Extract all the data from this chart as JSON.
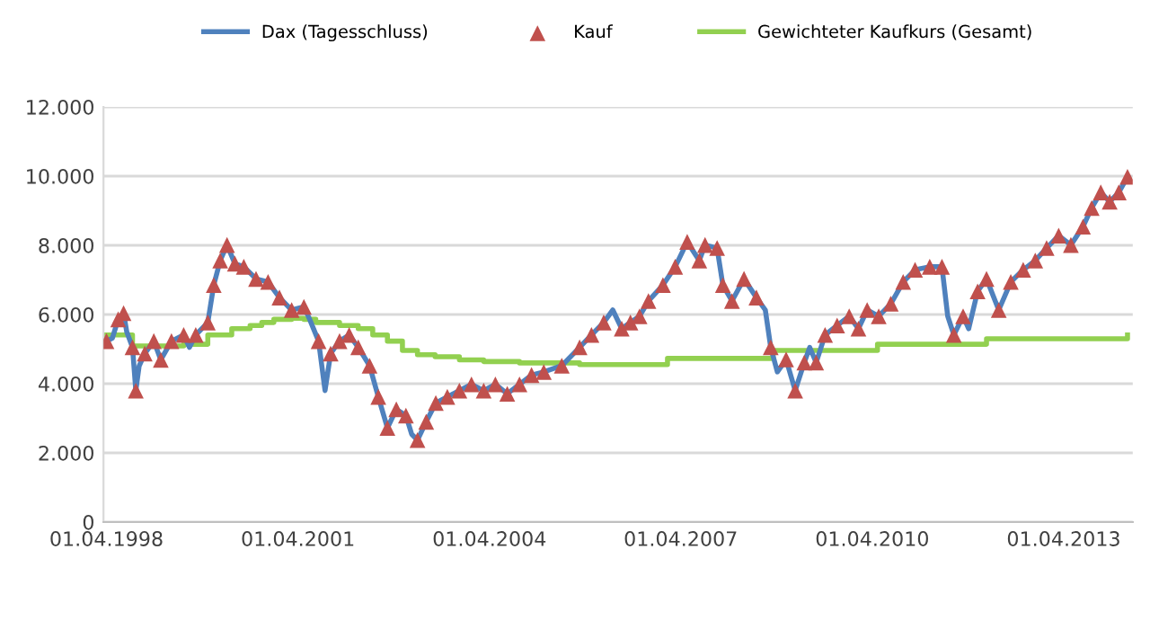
{
  "chart_data": {
    "type": "line",
    "xlim": [
      "1998-03-15",
      "2014-05-01"
    ],
    "xticks": [
      {
        "value": "1998-04-01",
        "label": "01.04.1998"
      },
      {
        "value": "2001-04-01",
        "label": "01.04.2001"
      },
      {
        "value": "2004-04-01",
        "label": "01.04.2004"
      },
      {
        "value": "2007-04-01",
        "label": "01.04.2007"
      },
      {
        "value": "2010-04-01",
        "label": "01.04.2010"
      },
      {
        "value": "2013-04-01",
        "label": "01.04.2013"
      }
    ],
    "ylim": [
      0,
      12000
    ],
    "yticks": [
      0,
      {
        "value": 2000,
        "label": "2.000"
      },
      {
        "value": 4000,
        "label": "4.000"
      },
      {
        "value": 6000,
        "label": "6.000"
      },
      {
        "value": 8000,
        "label": "8.000"
      },
      {
        "value": 10000,
        "label": "10.000"
      },
      {
        "value": 12000,
        "label": "12.000"
      }
    ],
    "grid": "y",
    "legend": "top",
    "series": [
      {
        "name": "Dax (Tagesschluss)",
        "color": "#4f81bd",
        "marker": "none",
        "x": [
          "1998-04-01",
          "1998-05-05",
          "1998-06-07",
          "1998-07-08",
          "1998-07-26",
          "1998-08-28",
          "1998-09-16",
          "1998-10-05",
          "1998-11-06",
          "1998-12-28",
          "1999-02-06",
          "1999-04-08",
          "1999-06-17",
          "1999-07-20",
          "1999-08-25",
          "1999-11-02",
          "1999-12-06",
          "2000-01-12",
          "2000-02-20",
          "2000-04-05",
          "2000-05-26",
          "2000-08-04",
          "2000-10-12",
          "2000-12-16",
          "2001-02-24",
          "2001-05-05",
          "2001-06-07",
          "2001-07-28",
          "2001-09-03",
          "2001-10-05",
          "2001-11-25",
          "2002-01-19",
          "2002-03-12",
          "2002-05-16",
          "2002-07-05",
          "2002-08-26",
          "2002-10-16",
          "2002-12-10",
          "2003-01-12",
          "2003-02-14",
          "2003-04-05",
          "2003-05-30",
          "2003-08-04",
          "2003-10-12",
          "2003-12-20",
          "2004-02-28",
          "2004-05-05",
          "2004-07-12",
          "2004-09-20",
          "2004-11-28",
          "2005-02-06",
          "2005-05-20",
          "2005-08-30",
          "2005-11-06",
          "2006-01-15",
          "2006-03-08",
          "2006-04-28",
          "2006-06-17",
          "2006-08-08",
          "2006-09-28",
          "2006-12-20",
          "2007-02-28",
          "2007-05-08",
          "2007-07-16",
          "2007-08-18",
          "2007-10-26",
          "2007-11-28",
          "2008-01-19",
          "2008-03-28",
          "2008-06-07",
          "2008-07-28",
          "2008-08-28",
          "2008-10-05",
          "2008-11-24",
          "2009-01-15",
          "2009-03-08",
          "2009-04-08",
          "2009-05-15",
          "2009-07-05",
          "2009-09-12",
          "2009-11-20",
          "2010-01-12",
          "2010-03-03",
          "2010-05-08",
          "2010-07-16",
          "2010-09-25",
          "2010-12-02",
          "2011-02-24",
          "2011-05-05",
          "2011-06-07",
          "2011-07-12",
          "2011-09-03",
          "2011-10-05",
          "2011-11-25",
          "2012-01-15",
          "2012-03-25",
          "2012-06-02",
          "2012-08-12",
          "2012-10-20",
          "2012-12-24",
          "2013-03-03",
          "2013-05-12",
          "2013-07-20",
          "2013-09-08",
          "2013-10-30",
          "2013-12-20",
          "2014-02-10",
          "2014-04-01"
        ],
        "values": [
          5230,
          5320,
          5860,
          6040,
          5500,
          5050,
          3800,
          4510,
          4870,
          5230,
          4690,
          5230,
          5410,
          5050,
          5410,
          5770,
          6850,
          7560,
          8010,
          7470,
          7380,
          7030,
          6940,
          6490,
          6130,
          6220,
          5860,
          5230,
          3800,
          4870,
          5230,
          5410,
          5050,
          4520,
          3620,
          2720,
          3260,
          3080,
          2540,
          2370,
          2900,
          3440,
          3620,
          3800,
          3980,
          3800,
          3980,
          3710,
          3980,
          4250,
          4340,
          4520,
          5050,
          5410,
          5770,
          6130,
          5590,
          5770,
          5950,
          6390,
          6850,
          7380,
          8100,
          7560,
          8010,
          7920,
          6850,
          6390,
          7030,
          6490,
          6130,
          5050,
          4340,
          4700,
          3800,
          4610,
          5050,
          4610,
          5410,
          5680,
          5950,
          5590,
          6130,
          5950,
          6310,
          6940,
          7290,
          7380,
          7380,
          5950,
          5410,
          5950,
          5590,
          6670,
          7030,
          6130,
          6940,
          7290,
          7560,
          7920,
          8280,
          8010,
          8540,
          9080,
          9530,
          9260,
          9530,
          9980
        ]
      },
      {
        "name": "Kauf",
        "type": "scatter",
        "color": "#c0504d",
        "marker": "triangle",
        "x": [
          "1998-04-01",
          "1998-06-07",
          "1998-07-08",
          "1998-08-28",
          "1998-09-16",
          "1998-11-06",
          "1998-12-28",
          "1999-02-06",
          "1999-04-08",
          "1999-06-17",
          "1999-08-25",
          "1999-11-02",
          "1999-12-06",
          "2000-01-12",
          "2000-02-20",
          "2000-04-05",
          "2000-05-26",
          "2000-08-04",
          "2000-10-12",
          "2000-12-16",
          "2001-02-24",
          "2001-05-05",
          "2001-07-28",
          "2001-10-05",
          "2001-11-25",
          "2002-01-19",
          "2002-03-12",
          "2002-05-16",
          "2002-07-05",
          "2002-08-26",
          "2002-10-16",
          "2002-12-10",
          "2003-02-14",
          "2003-04-05",
          "2003-05-30",
          "2003-08-04",
          "2003-10-12",
          "2003-12-20",
          "2004-02-28",
          "2004-05-05",
          "2004-07-12",
          "2004-09-20",
          "2004-11-28",
          "2005-02-06",
          "2005-05-20",
          "2005-08-30",
          "2005-11-06",
          "2006-01-15",
          "2006-04-28",
          "2006-06-17",
          "2006-08-08",
          "2006-09-28",
          "2006-12-20",
          "2007-02-28",
          "2007-05-08",
          "2007-07-16",
          "2007-08-18",
          "2007-10-26",
          "2007-11-28",
          "2008-01-19",
          "2008-03-28",
          "2008-06-07",
          "2008-08-28",
          "2008-11-24",
          "2009-01-15",
          "2009-03-08",
          "2009-05-15",
          "2009-07-05",
          "2009-09-12",
          "2009-11-20",
          "2010-01-12",
          "2010-03-03",
          "2010-05-08",
          "2010-07-16",
          "2010-09-25",
          "2010-12-02",
          "2011-02-24",
          "2011-05-05",
          "2011-07-12",
          "2011-09-03",
          "2011-11-25",
          "2012-01-15",
          "2012-03-25",
          "2012-06-02",
          "2012-08-12",
          "2012-10-20",
          "2012-12-24",
          "2013-03-03",
          "2013-05-12",
          "2013-07-20",
          "2013-09-08",
          "2013-10-30",
          "2013-12-20",
          "2014-02-10",
          "2014-04-01"
        ],
        "values": [
          5230,
          5860,
          6040,
          5050,
          3800,
          4870,
          5230,
          4690,
          5230,
          5410,
          5410,
          5770,
          6850,
          7560,
          8010,
          7470,
          7380,
          7030,
          6940,
          6490,
          6130,
          6220,
          5230,
          4870,
          5230,
          5410,
          5050,
          4520,
          3620,
          2720,
          3260,
          3080,
          2370,
          2900,
          3440,
          3620,
          3800,
          3980,
          3800,
          3980,
          3710,
          3980,
          4250,
          4340,
          4520,
          5050,
          5410,
          5770,
          5590,
          5770,
          5950,
          6390,
          6850,
          7380,
          8100,
          7560,
          8010,
          7920,
          6850,
          6390,
          7030,
          6490,
          5050,
          4700,
          3800,
          4610,
          4610,
          5410,
          5680,
          5950,
          5590,
          6130,
          5950,
          6310,
          6940,
          7290,
          7380,
          7380,
          5410,
          5950,
          6670,
          7030,
          6130,
          6940,
          7290,
          7560,
          7920,
          8280,
          8010,
          8540,
          9080,
          9530,
          9260,
          9530,
          9980
        ]
      },
      {
        "name": "Gewichteter Kaufkurs (Gesamt)",
        "type": "step",
        "color": "#92d050",
        "marker": "none",
        "x": [
          "1998-04-01",
          "1998-08-28",
          "1999-06-17",
          "1999-11-02",
          "2000-03-18",
          "2000-07-01",
          "2000-09-06",
          "2000-11-14",
          "2001-02-24",
          "2001-05-05",
          "2001-07-12",
          "2001-11-25",
          "2002-03-12",
          "2002-06-03",
          "2002-08-26",
          "2002-11-20",
          "2003-02-14",
          "2003-05-26",
          "2003-10-12",
          "2004-02-28",
          "2004-09-20",
          "2005-08-30",
          "2007-01-15",
          "2008-09-10",
          "2010-05-01",
          "2012-01-15",
          "2014-04-01"
        ],
        "values": [
          5410,
          5090,
          5140,
          5410,
          5590,
          5680,
          5770,
          5860,
          5890,
          5860,
          5770,
          5680,
          5590,
          5410,
          5230,
          4960,
          4840,
          4780,
          4690,
          4640,
          4600,
          4550,
          4730,
          4960,
          5140,
          5300,
          5410
        ]
      }
    ]
  }
}
